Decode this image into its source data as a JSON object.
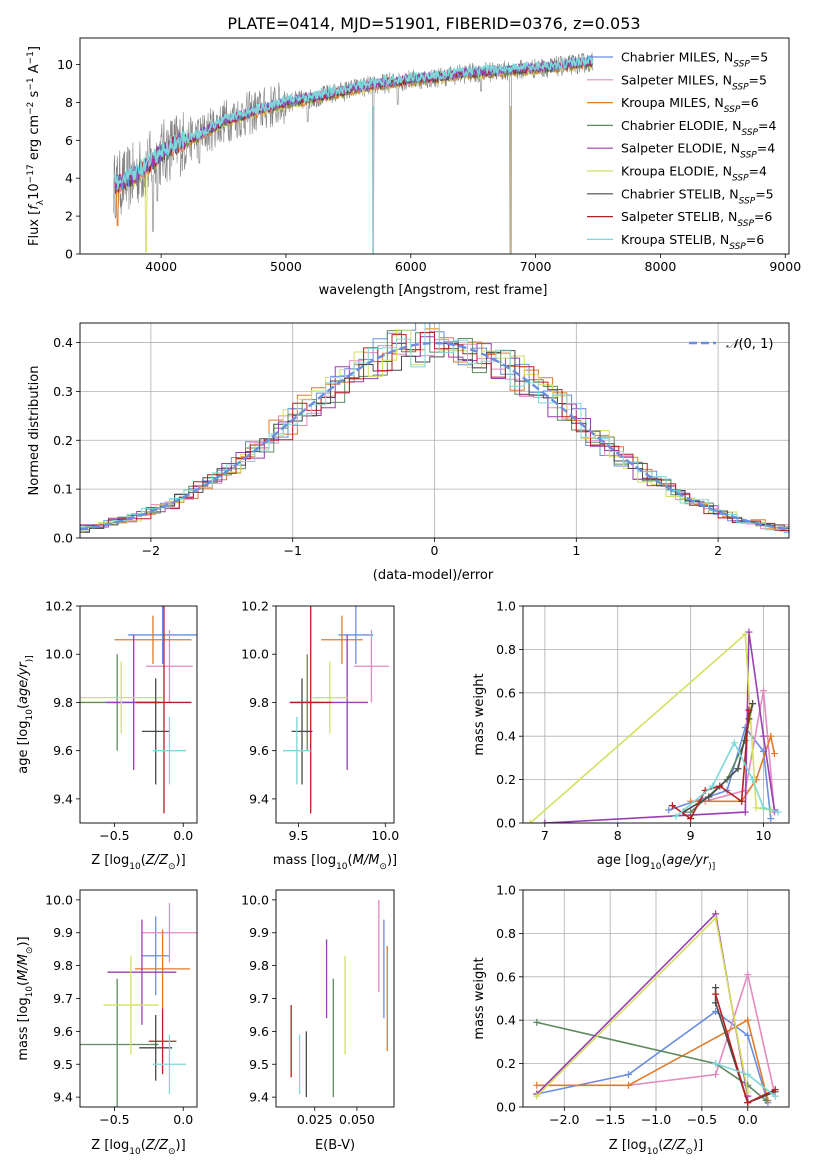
{
  "colors": {
    "Chabrier MILES": "#6a8ee0",
    "Salpeter MILES": "#e58ac0",
    "Kroupa MILES": "#e07b2a",
    "Chabrier ELODIE": "#5f8a5f",
    "Salpeter ELODIE": "#9a3fb0",
    "Kroupa ELODIE": "#d4e060",
    "Chabrier STELIB": "#4a4a4a",
    "Salpeter STELIB": "#b52020",
    "Kroupa STELIB": "#7fd8d8",
    "data": "#808080",
    "normal": "#6a8ee0"
  },
  "chart_data": [
    {
      "id": "spectrum",
      "type": "line",
      "title": "PLATE=0414, MJD=51901, FIBERID=0376, z=0.053",
      "xlabel": "wavelength [Angstrom, rest frame]",
      "ylabel_parts": [
        "Flux [",
        "f",
        "λ",
        "10",
        "−17",
        " erg cm",
        "−2",
        " s",
        "−1",
        " A",
        "−1",
        "]"
      ],
      "xlim": [
        3350,
        9030
      ],
      "ylim": [
        0,
        11.4
      ],
      "xticks": [
        4000,
        5000,
        6000,
        7000,
        8000,
        9000
      ],
      "yticks": [
        0,
        2,
        4,
        6,
        8,
        10
      ],
      "legend": [
        {
          "model": "Chabrier MILES",
          "nssp": "5"
        },
        {
          "model": "Salpeter MILES",
          "nssp": "5"
        },
        {
          "model": "Kroupa MILES",
          "nssp": "6"
        },
        {
          "model": "Chabrier ELODIE",
          "nssp": "4"
        },
        {
          "model": "Salpeter ELODIE",
          "nssp": "4"
        },
        {
          "model": "Kroupa ELODIE",
          "nssp": "4"
        },
        {
          "model": "Chabrier STELIB",
          "nssp": "5"
        },
        {
          "model": "Salpeter STELIB",
          "nssp": "6"
        },
        {
          "model": "Kroupa STELIB",
          "nssp": "6"
        }
      ],
      "continuum": [
        [
          3620,
          3.6
        ],
        [
          3700,
          3.8
        ],
        [
          3800,
          4.2
        ],
        [
          3900,
          4.7
        ],
        [
          4000,
          5.3
        ],
        [
          4100,
          5.7
        ],
        [
          4200,
          6.0
        ],
        [
          4300,
          6.2
        ],
        [
          4400,
          6.6
        ],
        [
          4500,
          7.0
        ],
        [
          4600,
          7.2
        ],
        [
          4700,
          7.4
        ],
        [
          4800,
          7.6
        ],
        [
          4900,
          7.8
        ],
        [
          5000,
          8.0
        ],
        [
          5200,
          8.2
        ],
        [
          5400,
          8.5
        ],
        [
          5600,
          8.8
        ],
        [
          5800,
          9.0
        ],
        [
          6000,
          9.2
        ],
        [
          6200,
          9.3
        ],
        [
          6400,
          9.5
        ],
        [
          6600,
          9.6
        ],
        [
          6800,
          9.7
        ],
        [
          7000,
          9.8
        ],
        [
          7200,
          9.9
        ],
        [
          7400,
          10.1
        ],
        [
          7460,
          10.1
        ]
      ],
      "dips": [
        [
          3935,
          1.2
        ],
        [
          3970,
          2.8
        ],
        [
          4305,
          4.8
        ],
        [
          5175,
          7.0
        ],
        [
          5700,
          0.0
        ],
        [
          5895,
          7.9
        ],
        [
          6563,
          8.6
        ],
        [
          6800,
          0.0
        ]
      ]
    },
    {
      "id": "residuals",
      "type": "histogram",
      "xlabel": "(data-model)/error",
      "ylabel": "Normed distribution",
      "xlim": [
        -2.5,
        2.5
      ],
      "ylim": [
        0,
        0.44
      ],
      "xticks": [
        -2,
        -1,
        0,
        1,
        2
      ],
      "yticks": [
        0,
        0.1,
        0.2,
        0.3,
        0.4
      ],
      "bin_width": 0.1,
      "legend": "N(0,1)"
    },
    {
      "id": "age-vs-Z",
      "type": "scatter",
      "xlabel_parts": [
        "Z [",
        "log",
        "10",
        "(",
        "Z/Z",
        "⊙",
        ")]"
      ],
      "ylabel_parts": [
        "age  [",
        "log",
        "10",
        "(",
        "age/yr",
        ")]"
      ],
      "xlim": [
        -0.75,
        0.1
      ],
      "ylim": [
        9.3,
        10.2
      ],
      "xticks": [
        -0.5,
        0.0
      ],
      "yticks": [
        9.4,
        9.6,
        9.8,
        10.0,
        10.2
      ],
      "points": [
        {
          "model": "Chabrier MILES",
          "x": -0.15,
          "xerr": 0.25,
          "y": 10.08,
          "yerr": 0.12
        },
        {
          "model": "Salpeter MILES",
          "x": -0.1,
          "xerr": 0.17,
          "y": 9.95,
          "yerr": 0.15
        },
        {
          "model": "Kroupa MILES",
          "x": -0.22,
          "xerr": 0.28,
          "y": 10.06,
          "yerr": 0.1
        },
        {
          "model": "Chabrier ELODIE",
          "x": -0.48,
          "xerr": 0.3,
          "y": 9.8,
          "yerr": 0.2
        },
        {
          "model": "Salpeter ELODIE",
          "x": -0.36,
          "xerr": 0.2,
          "y": 9.8,
          "yerr": 0.28
        },
        {
          "model": "Kroupa ELODIE",
          "x": -0.45,
          "xerr": 0.3,
          "y": 9.82,
          "yerr": 0.15
        },
        {
          "model": "Chabrier STELIB",
          "x": -0.2,
          "xerr": 0.1,
          "y": 9.68,
          "yerr": 0.22
        },
        {
          "model": "Salpeter STELIB",
          "x": -0.14,
          "xerr": 0.2,
          "y": 9.8,
          "yerr": 0.46
        },
        {
          "model": "Kroupa STELIB",
          "x": -0.1,
          "xerr": 0.12,
          "y": 9.6,
          "yerr": 0.14
        }
      ]
    },
    {
      "id": "age-vs-mass",
      "type": "scatter",
      "xlabel_parts": [
        "mass [",
        "log",
        "10",
        "(",
        "M/M",
        "⊙",
        ")]"
      ],
      "xlim": [
        9.37,
        10.05
      ],
      "ylim": [
        9.3,
        10.2
      ],
      "xticks": [
        9.5,
        10.0
      ],
      "yticks": [
        9.4,
        9.6,
        9.8,
        10.0,
        10.2
      ],
      "points": [
        {
          "model": "Chabrier MILES",
          "x": 9.83,
          "xerr": 0.1,
          "y": 10.08,
          "yerr": 0.12
        },
        {
          "model": "Salpeter MILES",
          "x": 9.92,
          "xerr": 0.1,
          "y": 9.95,
          "yerr": 0.15
        },
        {
          "model": "Kroupa MILES",
          "x": 9.75,
          "xerr": 0.12,
          "y": 10.06,
          "yerr": 0.1
        },
        {
          "model": "Chabrier ELODIE",
          "x": 9.55,
          "xerr": 0.1,
          "y": 9.8,
          "yerr": 0.2
        },
        {
          "model": "Salpeter ELODIE",
          "x": 9.78,
          "xerr": 0.12,
          "y": 9.8,
          "yerr": 0.28
        },
        {
          "model": "Kroupa ELODIE",
          "x": 9.68,
          "xerr": 0.1,
          "y": 9.82,
          "yerr": 0.15
        },
        {
          "model": "Chabrier STELIB",
          "x": 9.52,
          "xerr": 0.06,
          "y": 9.68,
          "yerr": 0.22
        },
        {
          "model": "Salpeter STELIB",
          "x": 9.57,
          "xerr": 0.12,
          "y": 9.8,
          "yerr": 0.46
        },
        {
          "model": "Kroupa STELIB",
          "x": 9.49,
          "xerr": 0.08,
          "y": 9.6,
          "yerr": 0.14
        }
      ]
    },
    {
      "id": "weight-vs-age",
      "type": "line",
      "xlabel_parts": [
        "age  [",
        "log",
        "10",
        "(",
        "age/yr",
        ")]"
      ],
      "ylabel": "mass weight",
      "xlim": [
        6.7,
        10.35
      ],
      "ylim": [
        0,
        1.0
      ],
      "xticks": [
        7,
        8,
        9,
        10
      ],
      "yticks": [
        0.0,
        0.2,
        0.4,
        0.6,
        0.8,
        1.0
      ],
      "series": [
        {
          "model": "Chabrier MILES",
          "x": [
            8.7,
            9.5,
            9.75,
            10.0,
            10.1
          ],
          "y": [
            0.06,
            0.15,
            0.44,
            0.33,
            0.02
          ]
        },
        {
          "model": "Salpeter MILES",
          "x": [
            9.2,
            9.75,
            10.0,
            10.15
          ],
          "y": [
            0.1,
            0.15,
            0.61,
            0.05
          ]
        },
        {
          "model": "Kroupa MILES",
          "x": [
            9.0,
            9.7,
            9.9,
            10.1,
            10.15
          ],
          "y": [
            0.1,
            0.1,
            0.2,
            0.4,
            0.32
          ]
        },
        {
          "model": "Chabrier ELODIE",
          "x": [
            9.0,
            9.5,
            9.75,
            9.85
          ],
          "y": [
            0.05,
            0.2,
            0.38,
            0.55
          ]
        },
        {
          "model": "Salpeter ELODIE",
          "x": [
            7.0,
            9.75,
            9.8,
            10.0,
            10.15
          ],
          "y": [
            0.0,
            0.05,
            0.88,
            0.4,
            0.06
          ]
        },
        {
          "model": "Kroupa ELODIE",
          "x": [
            6.8,
            9.75,
            9.9,
            10.1
          ],
          "y": [
            0.0,
            0.87,
            0.07,
            0.06
          ]
        },
        {
          "model": "Chabrier STELIB",
          "x": [
            8.9,
            9.25,
            9.65,
            9.8,
            9.85
          ],
          "y": [
            0.05,
            0.12,
            0.25,
            0.48,
            0.55
          ]
        },
        {
          "model": "Salpeter STELIB",
          "x": [
            8.75,
            9.0,
            9.2,
            9.4,
            9.7,
            9.8
          ],
          "y": [
            0.08,
            0.02,
            0.15,
            0.17,
            0.1,
            0.52
          ]
        },
        {
          "model": "Kroupa STELIB",
          "x": [
            8.8,
            9.3,
            9.6,
            9.85,
            10.0,
            10.2
          ],
          "y": [
            0.03,
            0.17,
            0.37,
            0.2,
            0.07,
            0.05
          ]
        }
      ]
    },
    {
      "id": "mass-vs-Z",
      "type": "scatter",
      "xlabel_parts": [
        "Z [",
        "log",
        "10",
        "(",
        "Z/Z",
        "⊙",
        ")]"
      ],
      "ylabel_parts": [
        "mass [",
        "log",
        "10",
        "(",
        "M/M",
        "⊙",
        ")]"
      ],
      "xlim": [
        -0.75,
        0.1
      ],
      "ylim": [
        9.37,
        10.03
      ],
      "xticks": [
        -0.5,
        0.0
      ],
      "yticks": [
        9.4,
        9.5,
        9.6,
        9.7,
        9.8,
        9.9,
        10.0
      ],
      "points": [
        {
          "model": "Chabrier MILES",
          "x": -0.2,
          "xerr": 0.1,
          "y": 9.83,
          "yerr": 0.12
        },
        {
          "model": "Salpeter MILES",
          "x": -0.1,
          "xerr": 0.2,
          "y": 9.9,
          "yerr": 0.09
        },
        {
          "model": "Kroupa MILES",
          "x": -0.15,
          "xerr": 0.2,
          "y": 9.79,
          "yerr": 0.12
        },
        {
          "model": "Chabrier ELODIE",
          "x": -0.48,
          "xerr": 0.3,
          "y": 9.56,
          "yerr": 0.2
        },
        {
          "model": "Salpeter ELODIE",
          "x": -0.3,
          "xerr": 0.25,
          "y": 9.78,
          "yerr": 0.16
        },
        {
          "model": "Kroupa ELODIE",
          "x": -0.38,
          "xerr": 0.2,
          "y": 9.68,
          "yerr": 0.15
        },
        {
          "model": "Chabrier STELIB",
          "x": -0.2,
          "xerr": 0.12,
          "y": 9.55,
          "yerr": 0.1
        },
        {
          "model": "Salpeter STELIB",
          "x": -0.15,
          "xerr": 0.1,
          "y": 9.57,
          "yerr": 0.1
        },
        {
          "model": "Kroupa STELIB",
          "x": -0.1,
          "xerr": 0.12,
          "y": 9.5,
          "yerr": 0.09
        }
      ]
    },
    {
      "id": "mass-vs-EBV",
      "type": "scatter",
      "xlabel": "E(B-V)",
      "xlim": [
        0.002,
        0.072
      ],
      "ylim": [
        9.37,
        10.03
      ],
      "xticks": [
        0.025,
        0.05
      ],
      "yticks": [
        9.4,
        9.5,
        9.6,
        9.7,
        9.8,
        9.9,
        10.0
      ],
      "points": [
        {
          "model": "Chabrier MILES",
          "x": 0.066,
          "y": 9.79,
          "yerr": 0.15
        },
        {
          "model": "Salpeter MILES",
          "x": 0.063,
          "y": 9.86,
          "yerr": 0.14
        },
        {
          "model": "Kroupa MILES",
          "x": 0.068,
          "y": 9.7,
          "yerr": 0.16
        },
        {
          "model": "Chabrier ELODIE",
          "x": 0.036,
          "y": 9.58,
          "yerr": 0.18
        },
        {
          "model": "Salpeter ELODIE",
          "x": 0.032,
          "y": 9.76,
          "yerr": 0.12
        },
        {
          "model": "Kroupa ELODIE",
          "x": 0.043,
          "y": 9.68,
          "yerr": 0.15
        },
        {
          "model": "Chabrier STELIB",
          "x": 0.02,
          "y": 9.5,
          "yerr": 0.1
        },
        {
          "model": "Salpeter STELIB",
          "x": 0.011,
          "y": 9.57,
          "yerr": 0.11
        },
        {
          "model": "Kroupa STELIB",
          "x": 0.016,
          "y": 9.5,
          "yerr": 0.09
        }
      ]
    },
    {
      "id": "weight-vs-Z",
      "type": "line",
      "xlabel_parts": [
        "Z [",
        "log",
        "10",
        "(",
        "Z/Z",
        "⊙",
        ")]"
      ],
      "ylabel": "mass weight",
      "xlim": [
        -2.45,
        0.45
      ],
      "ylim": [
        0,
        1.0
      ],
      "xticks": [
        -2.0,
        -1.5,
        -1.0,
        -0.5,
        0.0
      ],
      "yticks": [
        0.0,
        0.2,
        0.4,
        0.6,
        0.8,
        1.0
      ],
      "series": [
        {
          "model": "Chabrier MILES",
          "x": [
            -2.3,
            -1.3,
            -0.35,
            0.0,
            0.22
          ],
          "y": [
            0.06,
            0.15,
            0.44,
            0.33,
            0.02
          ]
        },
        {
          "model": "Salpeter MILES",
          "x": [
            -1.3,
            -0.35,
            0.0,
            0.3
          ],
          "y": [
            0.1,
            0.15,
            0.61,
            0.05
          ]
        },
        {
          "model": "Kroupa MILES",
          "x": [
            -2.3,
            -1.3,
            0.0,
            0.22
          ],
          "y": [
            0.1,
            0.1,
            0.4,
            0.03
          ]
        },
        {
          "model": "Chabrier ELODIE",
          "x": [
            -2.3,
            -0.35,
            0.0,
            0.2
          ],
          "y": [
            0.39,
            0.2,
            0.1,
            0.03
          ]
        },
        {
          "model": "Salpeter ELODIE",
          "x": [
            -2.3,
            -0.35,
            0.0
          ],
          "y": [
            0.06,
            0.89,
            0.05
          ]
        },
        {
          "model": "Kroupa ELODIE",
          "x": [
            -2.3,
            -0.35,
            0.0
          ],
          "y": [
            0.05,
            0.87,
            0.07
          ]
        },
        {
          "model": "Chabrier STELIB",
          "x": [
            -0.35,
            -0.35,
            0.0,
            0.3
          ],
          "y": [
            0.55,
            0.48,
            0.02,
            0.07
          ]
        },
        {
          "model": "Salpeter STELIB",
          "x": [
            -0.35,
            0.0,
            0.3
          ],
          "y": [
            0.52,
            0.02,
            0.08
          ]
        },
        {
          "model": "Kroupa STELIB",
          "x": [
            -0.35,
            0.0,
            0.3
          ],
          "y": [
            0.2,
            0.15,
            0.05
          ]
        }
      ]
    }
  ]
}
